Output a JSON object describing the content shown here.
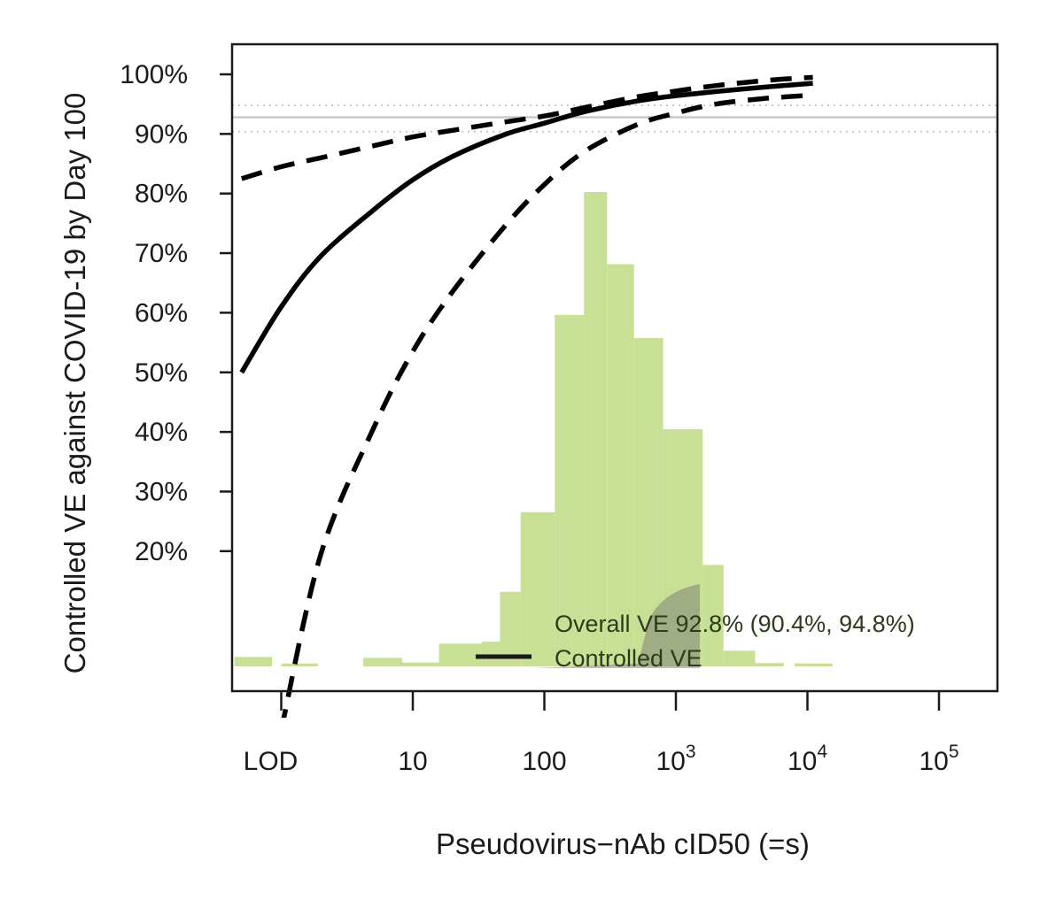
{
  "chart_data": {
    "type": "line",
    "title": "",
    "xlabel": "Pseudovirus−nAb cID50 (=s)",
    "ylabel": "Controlled VE against COVID-19 by Day 100",
    "x_scale": "log10",
    "xlim": [
      0.55,
      200000
    ],
    "ylim": [
      -0.1,
      1.0
    ],
    "x_ticks": [
      {
        "value": 1.0,
        "label": "LOD"
      },
      {
        "value": 10,
        "label": "10"
      },
      {
        "value": 100,
        "label": "100"
      },
      {
        "value": 1000,
        "label": "10",
        "sup": "3"
      },
      {
        "value": 10000,
        "label": "10",
        "sup": "4"
      },
      {
        "value": 100000,
        "label": "10",
        "sup": "5"
      }
    ],
    "y_ticks": [
      {
        "value": 0.2,
        "label": "20%"
      },
      {
        "value": 0.3,
        "label": "30%"
      },
      {
        "value": 0.4,
        "label": "40%"
      },
      {
        "value": 0.5,
        "label": "50%"
      },
      {
        "value": 0.6,
        "label": "60%"
      },
      {
        "value": 0.7,
        "label": "70%"
      },
      {
        "value": 0.8,
        "label": "80%"
      },
      {
        "value": 0.9,
        "label": "90%"
      },
      {
        "value": 1.0,
        "label": "100%"
      }
    ],
    "grid": false,
    "legend_position": "bottom-right",
    "overall_ve": {
      "estimate": 0.928,
      "lower": 0.904,
      "upper": 0.948
    },
    "series": [
      {
        "name": "Controlled VE",
        "style": "solid",
        "x": [
          0.5,
          1,
          2,
          5,
          10,
          20,
          50,
          100,
          200,
          500,
          1000,
          2000,
          5000,
          11000
        ],
        "y": [
          0.5,
          0.61,
          0.695,
          0.772,
          0.823,
          0.862,
          0.899,
          0.918,
          0.937,
          0.955,
          0.964,
          0.971,
          0.979,
          0.985
        ]
      },
      {
        "style": "dashed",
        "x": [
          0.5,
          1,
          2,
          5,
          10,
          20,
          50,
          100,
          200,
          500,
          1000,
          2000,
          5000,
          11000
        ],
        "y": [
          0.825,
          0.845,
          0.86,
          0.88,
          0.895,
          0.906,
          0.92,
          0.93,
          0.944,
          0.962,
          0.972,
          0.981,
          0.99,
          0.995
        ]
      },
      {
        "style": "dashed",
        "x": [
          1,
          2,
          5,
          10,
          20,
          50,
          100,
          200,
          500,
          1000,
          2000,
          5000,
          11000
        ],
        "y": [
          -0.1,
          0.195,
          0.405,
          0.535,
          0.635,
          0.745,
          0.815,
          0.87,
          0.915,
          0.935,
          0.95,
          0.96,
          0.965
        ]
      }
    ],
    "histogram": {
      "color": "#c8df96",
      "note": "relative frequency (0-1) of pseudovirus-nAb cID50 values",
      "bins": [
        {
          "from": 0.44,
          "to": 0.85,
          "freq": 0.02
        },
        {
          "from": 1.0,
          "to": 1.9,
          "freq": 0.006
        },
        {
          "from": 4.2,
          "to": 8.3,
          "freq": 0.018
        },
        {
          "from": 8.3,
          "to": 15.8,
          "freq": 0.008
        },
        {
          "from": 15.8,
          "to": 33.5,
          "freq": 0.048
        },
        {
          "from": 33.5,
          "to": 46,
          "freq": 0.052
        },
        {
          "from": 46,
          "to": 66,
          "freq": 0.157
        },
        {
          "from": 66,
          "to": 120,
          "freq": 0.325
        },
        {
          "from": 120,
          "to": 200,
          "freq": 0.741
        },
        {
          "from": 200,
          "to": 300,
          "freq": 1.0
        },
        {
          "from": 300,
          "to": 480,
          "freq": 0.848
        },
        {
          "from": 480,
          "to": 800,
          "freq": 0.692
        },
        {
          "from": 800,
          "to": 1600,
          "freq": 0.5
        },
        {
          "from": 1600,
          "to": 2300,
          "freq": 0.214
        },
        {
          "from": 2300,
          "to": 4000,
          "freq": 0.033
        },
        {
          "from": 4000,
          "to": 6600,
          "freq": 0.007
        },
        {
          "from": 8000,
          "to": 15500,
          "freq": 0.006
        }
      ]
    },
    "reference_lines": [
      {
        "y": 0.928,
        "style": "solid",
        "color": "#c8c8c8"
      },
      {
        "y": 0.904,
        "style": "dotted",
        "color": "#c8c8c8"
      },
      {
        "y": 0.948,
        "style": "dotted",
        "color": "#c8c8c8"
      }
    ],
    "legend": [
      {
        "label": "Overall VE 92.8% (90.4%, 94.8%)",
        "marker": "shaded-band",
        "color": "#8a8a8a"
      },
      {
        "label": "Controlled VE",
        "marker": "line",
        "color": "#000000"
      }
    ]
  }
}
